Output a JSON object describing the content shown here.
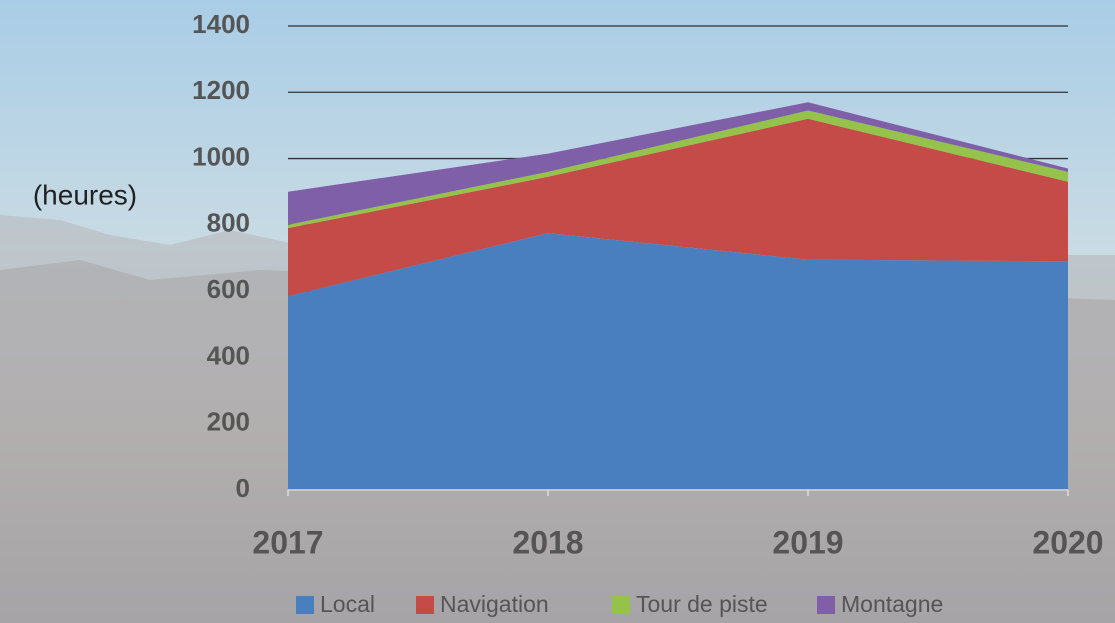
{
  "chart_data": {
    "type": "stacked_area",
    "y_label": "(heures)",
    "categories": [
      "2017",
      "2018",
      "2019",
      "2020"
    ],
    "series": [
      {
        "name": "Local",
        "color": "#4a7fbf",
        "values": [
          585,
          775,
          695,
          690
        ]
      },
      {
        "name": "Navigation",
        "color": "#c44b47",
        "values": [
          205,
          170,
          425,
          240
        ]
      },
      {
        "name": "Tour de piste",
        "color": "#94c24a",
        "values": [
          10,
          15,
          25,
          30
        ]
      },
      {
        "name": "Montagne",
        "color": "#7f5fa8",
        "values": [
          100,
          55,
          25,
          10
        ]
      }
    ],
    "ylim": [
      0,
      1400
    ],
    "yticks": [
      0,
      200,
      400,
      600,
      800,
      1000,
      1200,
      1400
    ],
    "grid": true,
    "legend": "bottom"
  }
}
